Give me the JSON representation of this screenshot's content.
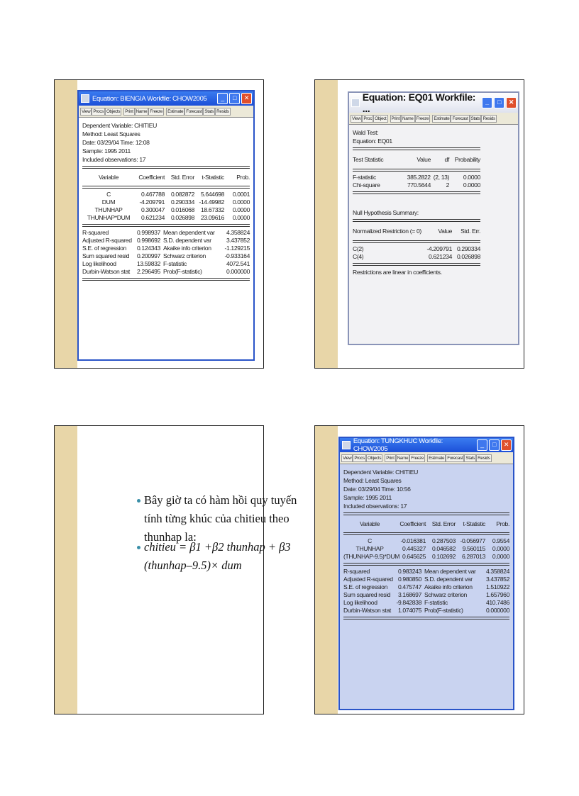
{
  "slide1": {
    "window_title": "Equation: BIENGIA   Workfile: CHOW2005",
    "toolbar": [
      "View",
      "Procs",
      "Objects",
      "Print",
      "Name",
      "Freeze",
      "Estimate",
      "Forecast",
      "Stats",
      "Resids"
    ],
    "header": [
      "Dependent Variable: CHITIEU",
      "Method: Least Squares",
      "Date: 03/29/04   Time: 12:08",
      "Sample: 1995 2011",
      "Included observations: 17"
    ],
    "columns": [
      "Variable",
      "Coefficient",
      "Std. Error",
      "t-Statistic",
      "Prob."
    ],
    "rows": [
      [
        "C",
        "0.467788",
        "0.082872",
        "5.644698",
        "0.0001"
      ],
      [
        "DUM",
        "-4.209791",
        "0.290334",
        "-14.49982",
        "0.0000"
      ],
      [
        "THUNHAP",
        "0.300047",
        "0.016068",
        "18.67332",
        "0.0000"
      ],
      [
        "THUNHAP*DUM",
        "0.621234",
        "0.026898",
        "23.09616",
        "0.0000"
      ]
    ],
    "stats": [
      [
        "R-squared",
        "0.998937",
        "Mean dependent var",
        "4.358824"
      ],
      [
        "Adjusted R-squared",
        "0.998692",
        "S.D. dependent var",
        "3.437852"
      ],
      [
        "S.E. of regression",
        "0.124343",
        "Akaike info criterion",
        "-1.129215"
      ],
      [
        "Sum squared resid",
        "0.200997",
        "Schwarz criterion",
        "-0.933164"
      ],
      [
        "Log likelihood",
        "13.59832",
        "F-statistic",
        "4072.541"
      ],
      [
        "Durbin-Watson stat",
        "2.296495",
        "Prob(F-statistic)",
        "0.000000"
      ]
    ]
  },
  "slide2": {
    "window_title": "Equation: EQ01   Workfile: ...",
    "toolbar": [
      "View",
      "Proc",
      "Object",
      "Print",
      "Name",
      "Freeze",
      "Estimate",
      "Forecast",
      "Stats",
      "Resids"
    ],
    "header": [
      "Wald Test:",
      "Equation: EQ01"
    ],
    "test_columns": [
      "Test Statistic",
      "Value",
      "df",
      "Probability"
    ],
    "test_rows": [
      [
        "F-statistic",
        "385.2822",
        "(2, 13)",
        "0.0000"
      ],
      [
        "Chi-square",
        "770.5644",
        "2",
        "0.0000"
      ]
    ],
    "null_title": "Null Hypothesis Summary:",
    "null_columns": [
      "Normalized Restriction (= 0)",
      "Value",
      "Std. Err."
    ],
    "null_rows": [
      [
        "C(2)",
        "-4.209791",
        "0.290334"
      ],
      [
        "C(4)",
        "0.621234",
        "0.026898"
      ]
    ],
    "footer": "Restrictions are linear in coefficients."
  },
  "slide3": {
    "bullets": [
      "Bây giờ ta có hàm hồi quy tuyến tính từng khúc của chitieu theo thunhap la:",
      "chitieu = β1 +β2 thunhap + β3 (thunhap–9.5)× dum"
    ]
  },
  "slide4": {
    "window_title": "Equation: TUNGKHUC   Workfile: CHOW2005",
    "toolbar": [
      "View",
      "Procs",
      "Objects",
      "Print",
      "Name",
      "Freeze",
      "Estimate",
      "Forecast",
      "Stats",
      "Resids"
    ],
    "header": [
      "Dependent Variable: CHITIEU",
      "Method: Least Squares",
      "Date: 03/29/04   Time: 10:56",
      "Sample: 1995 2011",
      "Included observations: 17"
    ],
    "columns": [
      "Variable",
      "Coefficient",
      "Std. Error",
      "t-Statistic",
      "Prob."
    ],
    "rows": [
      [
        "C",
        "-0.016381",
        "0.287503",
        "-0.056977",
        "0.9554"
      ],
      [
        "THUNHAP",
        "0.445327",
        "0.046582",
        "9.560115",
        "0.0000"
      ],
      [
        "(THUNHAP-9.5)*DUM",
        "0.645625",
        "0.102692",
        "6.287013",
        "0.0000"
      ]
    ],
    "stats": [
      [
        "R-squared",
        "0.983243",
        "Mean dependent var",
        "4.358824"
      ],
      [
        "Adjusted R-squared",
        "0.980850",
        "S.D. dependent var",
        "3.437852"
      ],
      [
        "S.E. of regression",
        "0.475747",
        "Akaike info criterion",
        "1.510922"
      ],
      [
        "Sum squared resid",
        "3.168697",
        "Schwarz criterion",
        "1.657960"
      ],
      [
        "Log likelihood",
        "-9.842838",
        "F-statistic",
        "410.7486"
      ],
      [
        "Durbin-Watson stat",
        "1.074075",
        "Prob(F-statistic)",
        "0.000000"
      ]
    ]
  },
  "colors": {
    "strip": "#e8d6a8",
    "title_bar": "#1c4fd8",
    "bullet": "#3a8fa8"
  }
}
